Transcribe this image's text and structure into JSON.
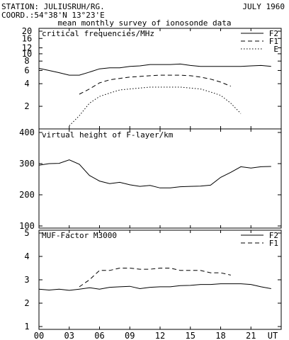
{
  "header": {
    "station": "STATION: JULIUSRUH/RG.",
    "coords": "COORD.:54°38'N 13°23'E",
    "date": "JULY 1960",
    "subtitle": "mean monthly survey of ionosonde data"
  },
  "chart_data": [
    {
      "type": "line",
      "title": "critical frequencies/MHz",
      "yscale": "log",
      "ylim": [
        1,
        20
      ],
      "yticks": [
        "2",
        "4",
        "6",
        "8",
        "10",
        "12",
        "16",
        "20"
      ],
      "xlim": [
        0,
        24
      ],
      "legend_position": "top-right",
      "series": [
        {
          "name": "F2",
          "style": "solid",
          "x": [
            0,
            1,
            2,
            3,
            4,
            5,
            6,
            7,
            8,
            9,
            10,
            11,
            12,
            13,
            14,
            15,
            16,
            17,
            18,
            19,
            20,
            21,
            22,
            23
          ],
          "y": [
            6.4,
            6.0,
            5.6,
            5.2,
            5.2,
            5.7,
            6.3,
            6.5,
            6.5,
            6.8,
            6.9,
            7.2,
            7.2,
            7.2,
            7.3,
            7.0,
            6.8,
            6.8,
            6.8,
            6.8,
            6.8,
            6.9,
            7.0,
            6.8
          ]
        },
        {
          "name": "F1",
          "style": "dashed",
          "x": [
            4,
            5,
            6,
            7,
            8,
            9,
            10,
            11,
            12,
            13,
            14,
            15,
            16,
            17,
            18,
            19
          ],
          "y": [
            2.9,
            3.4,
            4.1,
            4.5,
            4.7,
            4.9,
            5.0,
            5.1,
            5.2,
            5.2,
            5.2,
            5.1,
            4.9,
            4.6,
            4.2,
            3.7
          ]
        },
        {
          "name": "E",
          "style": "dotted",
          "x": [
            3,
            4,
            5,
            6,
            7,
            8,
            9,
            10,
            11,
            12,
            13,
            14,
            15,
            16,
            17,
            18,
            19,
            20
          ],
          "y": [
            1.1,
            1.5,
            2.2,
            2.7,
            3.0,
            3.3,
            3.4,
            3.5,
            3.6,
            3.6,
            3.6,
            3.6,
            3.5,
            3.4,
            3.1,
            2.8,
            2.2,
            1.6
          ]
        }
      ]
    },
    {
      "type": "line",
      "title": "virtual height of F-layer/km",
      "ylim": [
        100,
        400
      ],
      "yticks": [
        "100",
        "200",
        "300",
        "400"
      ],
      "xlim": [
        0,
        24
      ],
      "series": [
        {
          "name": "",
          "style": "solid",
          "x": [
            0,
            1,
            2,
            3,
            4,
            5,
            6,
            7,
            8,
            9,
            10,
            11,
            12,
            13,
            14,
            15,
            16,
            17,
            18,
            19,
            20,
            21,
            22,
            23
          ],
          "y": [
            295,
            300,
            301,
            312,
            298,
            262,
            244,
            236,
            240,
            232,
            227,
            230,
            222,
            222,
            226,
            227,
            228,
            231,
            256,
            272,
            290,
            286,
            290,
            291
          ]
        }
      ]
    },
    {
      "type": "line",
      "title": "MUF-Factor M3000",
      "ylim": [
        1,
        5
      ],
      "yticks": [
        "1",
        "2",
        "3",
        "4",
        "5"
      ],
      "xlim": [
        0,
        24
      ],
      "xticks": [
        "00",
        "03",
        "06",
        "09",
        "12",
        "15",
        "18",
        "21",
        "UT"
      ],
      "legend_position": "top-right",
      "series": [
        {
          "name": "F2",
          "style": "solid",
          "x": [
            0,
            1,
            2,
            3,
            4,
            5,
            6,
            7,
            8,
            9,
            10,
            11,
            12,
            13,
            14,
            15,
            16,
            17,
            18,
            19,
            20,
            21,
            22,
            23
          ],
          "y": [
            2.6,
            2.56,
            2.6,
            2.55,
            2.6,
            2.66,
            2.6,
            2.68,
            2.7,
            2.72,
            2.62,
            2.68,
            2.7,
            2.7,
            2.75,
            2.76,
            2.8,
            2.8,
            2.83,
            2.83,
            2.83,
            2.8,
            2.7,
            2.62
          ]
        },
        {
          "name": "F1",
          "style": "dashed",
          "x": [
            4,
            5,
            6,
            7,
            8,
            9,
            10,
            11,
            12,
            13,
            14,
            15,
            16,
            17,
            18,
            19
          ],
          "y": [
            2.7,
            3.0,
            3.4,
            3.4,
            3.5,
            3.5,
            3.45,
            3.45,
            3.5,
            3.5,
            3.4,
            3.4,
            3.4,
            3.3,
            3.3,
            3.2
          ]
        }
      ]
    }
  ]
}
